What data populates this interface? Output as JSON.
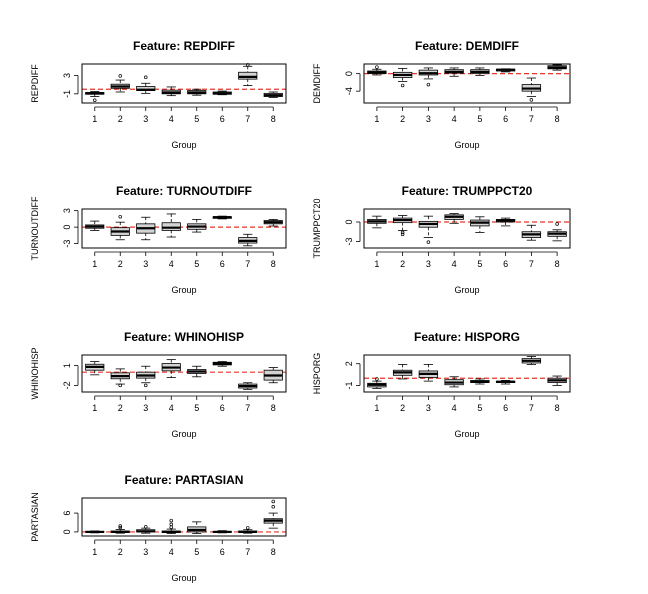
{
  "chart_data": [
    {
      "type": "boxplot",
      "title": "Feature: REPDIFF",
      "xlabel": "Group",
      "ylabel": "REPDIFF",
      "categories": [
        "1",
        "2",
        "3",
        "4",
        "5",
        "6",
        "7",
        "8"
      ],
      "yticks": [
        -1,
        3
      ],
      "ylim": [
        -3.0,
        5.5
      ],
      "reference_line": 0,
      "boxes": [
        {
          "min": -1.6,
          "q1": -1.1,
          "median": -0.9,
          "q3": -0.7,
          "max": -0.5,
          "outliers": [
            -2.4
          ]
        },
        {
          "min": -0.6,
          "q1": 0.2,
          "median": 0.6,
          "q3": 1.1,
          "max": 2.0,
          "outliers": [
            2.9
          ]
        },
        {
          "min": -0.9,
          "q1": -0.3,
          "median": -0.1,
          "q3": 0.6,
          "max": 1.3,
          "outliers": [
            2.6
          ]
        },
        {
          "min": -1.4,
          "q1": -1.0,
          "median": -0.7,
          "q3": -0.2,
          "max": 0.5,
          "outliers": []
        },
        {
          "min": -1.3,
          "q1": -1.0,
          "median": -0.7,
          "q3": -0.3,
          "max": 0.0,
          "outliers": []
        },
        {
          "min": -1.2,
          "q1": -1.1,
          "median": -0.9,
          "q3": -0.6,
          "max": -0.4,
          "outliers": []
        },
        {
          "min": 0.8,
          "q1": 2.2,
          "median": 2.7,
          "q3": 3.7,
          "max": 5.0,
          "outliers": [
            5.3
          ]
        },
        {
          "min": -1.8,
          "q1": -1.6,
          "median": -1.3,
          "q3": -0.9,
          "max": -0.6,
          "outliers": []
        }
      ]
    },
    {
      "type": "boxplot",
      "title": "Feature: DEMDIFF",
      "xlabel": "Group",
      "ylabel": "DEMDIFF",
      "categories": [
        "1",
        "2",
        "3",
        "4",
        "5",
        "6",
        "7",
        "8"
      ],
      "yticks": [
        -4,
        0
      ],
      "ylim": [
        -6.7,
        2.2
      ],
      "reference_line": 0,
      "boxes": [
        {
          "min": -0.3,
          "q1": 0.0,
          "median": 0.3,
          "q3": 0.6,
          "max": 1.0,
          "outliers": [
            1.5
          ]
        },
        {
          "min": -1.8,
          "q1": -0.9,
          "median": -0.3,
          "q3": 0.3,
          "max": 1.2,
          "outliers": [
            -2.7
          ]
        },
        {
          "min": -1.2,
          "q1": -0.3,
          "median": 0.1,
          "q3": 0.8,
          "max": 1.3,
          "outliers": [
            -2.5
          ]
        },
        {
          "min": -0.6,
          "q1": 0.1,
          "median": 0.4,
          "q3": 0.9,
          "max": 1.3,
          "outliers": []
        },
        {
          "min": -0.4,
          "q1": 0.0,
          "median": 0.4,
          "q3": 0.9,
          "max": 1.3,
          "outliers": []
        },
        {
          "min": 0.4,
          "q1": 0.6,
          "median": 0.9,
          "q3": 1.0,
          "max": 1.1,
          "outliers": []
        },
        {
          "min": -5.2,
          "q1": -4.0,
          "median": -3.4,
          "q3": -2.5,
          "max": -1.0,
          "outliers": [
            -6.0
          ]
        },
        {
          "min": 0.8,
          "q1": 1.1,
          "median": 1.4,
          "q3": 1.8,
          "max": 2.0,
          "outliers": []
        }
      ]
    },
    {
      "type": "boxplot",
      "title": "Feature: TURNOUTDIFF",
      "xlabel": "Group",
      "ylabel": "TURNOUTDIFF",
      "categories": [
        "1",
        "2",
        "3",
        "4",
        "5",
        "6",
        "7",
        "8"
      ],
      "yticks": [
        -3,
        0,
        3
      ],
      "ylim": [
        -3.8,
        3.3
      ],
      "reference_line": 0,
      "boxes": [
        {
          "min": -0.6,
          "q1": -0.2,
          "median": 0.1,
          "q3": 0.4,
          "max": 1.1,
          "outliers": []
        },
        {
          "min": -2.3,
          "q1": -1.5,
          "median": -0.8,
          "q3": -0.1,
          "max": 0.9,
          "outliers": [
            1.9
          ]
        },
        {
          "min": -2.3,
          "q1": -1.1,
          "median": -0.2,
          "q3": 0.6,
          "max": 1.8,
          "outliers": []
        },
        {
          "min": -1.8,
          "q1": -0.6,
          "median": -0.1,
          "q3": 0.8,
          "max": 2.4,
          "outliers": []
        },
        {
          "min": -0.9,
          "q1": -0.4,
          "median": 0.1,
          "q3": 0.6,
          "max": 1.4,
          "outliers": []
        },
        {
          "min": 1.5,
          "q1": 1.6,
          "median": 1.8,
          "q3": 1.9,
          "max": 2.0,
          "outliers": []
        },
        {
          "min": -3.4,
          "q1": -2.9,
          "median": -2.5,
          "q3": -1.9,
          "max": -1.3,
          "outliers": []
        },
        {
          "min": 0.2,
          "q1": 0.6,
          "median": 0.9,
          "q3": 1.2,
          "max": 1.4,
          "outliers": []
        }
      ]
    },
    {
      "type": "boxplot",
      "title": "Feature: TRUMPPCT20",
      "xlabel": "Group",
      "ylabel": "TRUMPPCT20",
      "categories": [
        "1",
        "2",
        "3",
        "4",
        "5",
        "6",
        "7",
        "8"
      ],
      "yticks": [
        -3,
        0
      ],
      "ylim": [
        -4.0,
        2.0
      ],
      "reference_line": 0,
      "boxes": [
        {
          "min": -0.9,
          "q1": -0.2,
          "median": 0.1,
          "q3": 0.4,
          "max": 0.9,
          "outliers": []
        },
        {
          "min": -1.3,
          "q1": -0.1,
          "median": 0.3,
          "q3": 0.6,
          "max": 1.0,
          "outliers": [
            -1.6,
            -1.9
          ]
        },
        {
          "min": -2.4,
          "q1": -0.8,
          "median": -0.3,
          "q3": 0.1,
          "max": 0.9,
          "outliers": [
            -3.1
          ]
        },
        {
          "min": -0.2,
          "q1": 0.4,
          "median": 0.8,
          "q3": 1.1,
          "max": 1.3,
          "outliers": []
        },
        {
          "min": -1.6,
          "q1": -0.6,
          "median": -0.1,
          "q3": 0.3,
          "max": 0.8,
          "outliers": []
        },
        {
          "min": -0.6,
          "q1": 0.0,
          "median": 0.2,
          "q3": 0.4,
          "max": 0.6,
          "outliers": []
        },
        {
          "min": -2.8,
          "q1": -2.4,
          "median": -1.9,
          "q3": -1.5,
          "max": -0.5,
          "outliers": []
        },
        {
          "min": -2.9,
          "q1": -2.2,
          "median": -1.8,
          "q3": -1.5,
          "max": -1.2,
          "outliers": [
            -0.3
          ]
        }
      ]
    },
    {
      "type": "boxplot",
      "title": "Feature: WHINOHISP",
      "xlabel": "Group",
      "ylabel": "WHINOHISP",
      "categories": [
        "1",
        "2",
        "3",
        "4",
        "5",
        "6",
        "7",
        "8"
      ],
      "yticks": [
        -2,
        1
      ],
      "ylim": [
        -3.0,
        2.6
      ],
      "reference_line": 0,
      "boxes": [
        {
          "min": -0.4,
          "q1": 0.3,
          "median": 0.8,
          "q3": 1.2,
          "max": 1.6,
          "outliers": []
        },
        {
          "min": -1.8,
          "q1": -1.0,
          "median": -0.6,
          "q3": -0.1,
          "max": 0.5,
          "outliers": [
            -2.0
          ]
        },
        {
          "min": -1.6,
          "q1": -0.9,
          "median": -0.5,
          "q3": 0.0,
          "max": 0.9,
          "outliers": [
            -2.0
          ]
        },
        {
          "min": -0.8,
          "q1": 0.2,
          "median": 0.7,
          "q3": 1.3,
          "max": 1.9,
          "outliers": []
        },
        {
          "min": -0.7,
          "q1": -0.2,
          "median": 0.1,
          "q3": 0.4,
          "max": 0.9,
          "outliers": []
        },
        {
          "min": 0.9,
          "q1": 1.1,
          "median": 1.3,
          "q3": 1.5,
          "max": 1.6,
          "outliers": []
        },
        {
          "min": -2.6,
          "q1": -2.4,
          "median": -2.1,
          "q3": -1.8,
          "max": -1.6,
          "outliers": []
        },
        {
          "min": -1.6,
          "q1": -1.2,
          "median": -0.5,
          "q3": 0.3,
          "max": 0.7,
          "outliers": []
        }
      ]
    },
    {
      "type": "boxplot",
      "title": "Feature: HISPORG",
      "xlabel": "Group",
      "ylabel": "HISPORG",
      "categories": [
        "1",
        "2",
        "3",
        "4",
        "5",
        "6",
        "7",
        "8"
      ],
      "yticks": [
        -1,
        2
      ],
      "ylim": [
        -1.9,
        3.2
      ],
      "reference_line": 0,
      "boxes": [
        {
          "min": -1.4,
          "q1": -1.2,
          "median": -0.9,
          "q3": -0.7,
          "max": -0.4,
          "outliers": [
            -0.1
          ]
        },
        {
          "min": -0.1,
          "q1": 0.4,
          "median": 0.8,
          "q3": 1.1,
          "max": 1.9,
          "outliers": []
        },
        {
          "min": -0.4,
          "q1": 0.1,
          "median": 0.6,
          "q3": 1.0,
          "max": 1.9,
          "outliers": []
        },
        {
          "min": -1.2,
          "q1": -0.9,
          "median": -0.6,
          "q3": -0.2,
          "max": 0.2,
          "outliers": []
        },
        {
          "min": -0.8,
          "q1": -0.6,
          "median": -0.5,
          "q3": -0.3,
          "max": -0.1,
          "outliers": []
        },
        {
          "min": -0.8,
          "q1": -0.6,
          "median": -0.5,
          "q3": -0.4,
          "max": -0.3,
          "outliers": []
        },
        {
          "min": 1.9,
          "q1": 2.1,
          "median": 2.4,
          "q3": 2.7,
          "max": 3.0,
          "outliers": []
        },
        {
          "min": -1.0,
          "q1": -0.6,
          "median": -0.3,
          "q3": 0.0,
          "max": 0.3,
          "outliers": []
        }
      ]
    },
    {
      "type": "boxplot",
      "title": "Feature: PARTASIAN",
      "xlabel": "Group",
      "ylabel": "PARTASIAN",
      "categories": [
        "1",
        "2",
        "3",
        "4",
        "5",
        "6",
        "7",
        "8"
      ],
      "yticks": [
        0,
        6
      ],
      "ylim": [
        -1.3,
        10.8
      ],
      "reference_line": 0,
      "boxes": [
        {
          "min": -0.3,
          "q1": -0.1,
          "median": 0.0,
          "q3": 0.2,
          "max": 0.3,
          "outliers": []
        },
        {
          "min": -0.4,
          "q1": -0.2,
          "median": 0.0,
          "q3": 0.3,
          "max": 0.8,
          "outliers": [
            1.4,
            1.9
          ]
        },
        {
          "min": -0.4,
          "q1": 0.0,
          "median": 0.2,
          "q3": 0.7,
          "max": 1.2,
          "outliers": [
            1.6
          ]
        },
        {
          "min": -0.5,
          "q1": -0.2,
          "median": 0.0,
          "q3": 0.3,
          "max": 0.9,
          "outliers": [
            1.5,
            2.4,
            3.6
          ]
        },
        {
          "min": -0.5,
          "q1": 0.0,
          "median": 0.6,
          "q3": 1.6,
          "max": 3.2,
          "outliers": []
        },
        {
          "min": -0.3,
          "q1": -0.1,
          "median": 0.0,
          "q3": 0.2,
          "max": 0.4,
          "outliers": []
        },
        {
          "min": -0.4,
          "q1": -0.1,
          "median": 0.0,
          "q3": 0.3,
          "max": 0.7,
          "outliers": [
            1.3
          ]
        },
        {
          "min": 1.2,
          "q1": 2.8,
          "median": 3.6,
          "q3": 4.2,
          "max": 6.0,
          "outliers": [
            8.0,
            9.7
          ]
        }
      ]
    }
  ],
  "style": {
    "box_fill": "#d3d3d3",
    "stroke": "#000000",
    "reference_line_color": "#e4362a"
  }
}
